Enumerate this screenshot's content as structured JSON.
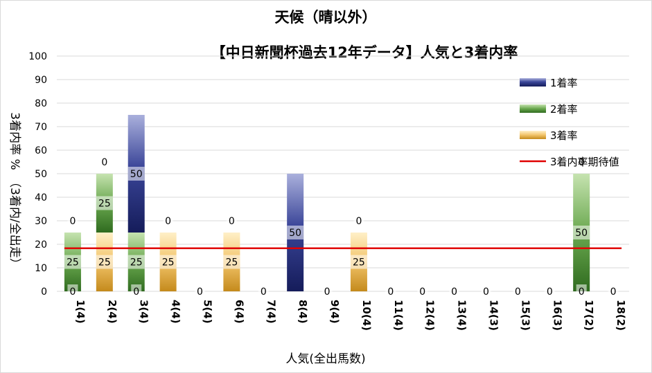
{
  "chart_data": {
    "type": "bar",
    "title": "天候（晴以外）",
    "subtitle": "【中日新聞杯過去12年データ】人気と3着内率",
    "xlabel": "人気(全出馬数)",
    "ylabel": "3着内率 %　（3着内/全出走）",
    "ylim": [
      0,
      100
    ],
    "yticks": [
      0,
      10,
      20,
      30,
      40,
      50,
      60,
      70,
      80,
      90,
      100
    ],
    "stacked": true,
    "grid": true,
    "legend_position": "top-right",
    "categories": [
      "1(4)",
      "2(4)",
      "3(4)",
      "4(4)",
      "5(4)",
      "6(4)",
      "7(4)",
      "8(4)",
      "9(4)",
      "10(4)",
      "11(4)",
      "12(4)",
      "13(4)",
      "14(3)",
      "15(3)",
      "16(3)",
      "17(2)",
      "18(2)"
    ],
    "series": [
      {
        "name": "1着率",
        "values": [
          0,
          0,
          50,
          0,
          0,
          0,
          0,
          50,
          0,
          0,
          0,
          0,
          0,
          0,
          0,
          0,
          0,
          0
        ],
        "color": "#2e3a8c"
      },
      {
        "name": "2着率",
        "values": [
          25,
          25,
          25,
          0,
          0,
          0,
          0,
          0,
          0,
          0,
          0,
          0,
          0,
          0,
          0,
          0,
          50,
          0
        ],
        "color": "#4e8a2e"
      },
      {
        "name": "3着率",
        "values": [
          0,
          25,
          0,
          25,
          0,
          25,
          0,
          0,
          0,
          25,
          0,
          0,
          0,
          0,
          0,
          0,
          0,
          0
        ],
        "color": "#d4a13a"
      },
      {
        "name": "3着内率期待値",
        "type": "line",
        "value": 18.3,
        "color": "#e00000"
      }
    ]
  }
}
